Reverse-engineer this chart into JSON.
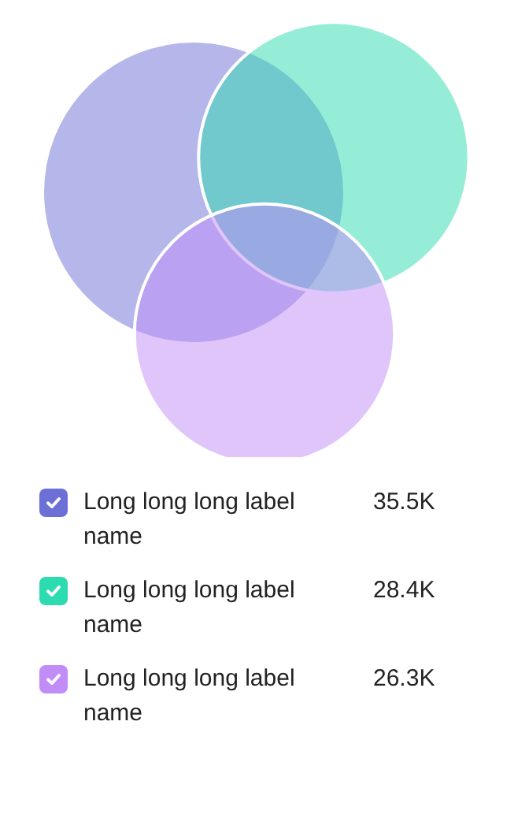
{
  "chart_data": {
    "type": "other",
    "categories": [
      "Long long long label name",
      "Long long long label name",
      "Long long long label name"
    ],
    "values": [
      35.5,
      28.4,
      26.3
    ],
    "value_labels": [
      "35.5K",
      "28.4K",
      "26.3K"
    ],
    "colors": [
      "#6b6fd6",
      "#2ddbb0",
      "#c28cf7"
    ]
  }
}
